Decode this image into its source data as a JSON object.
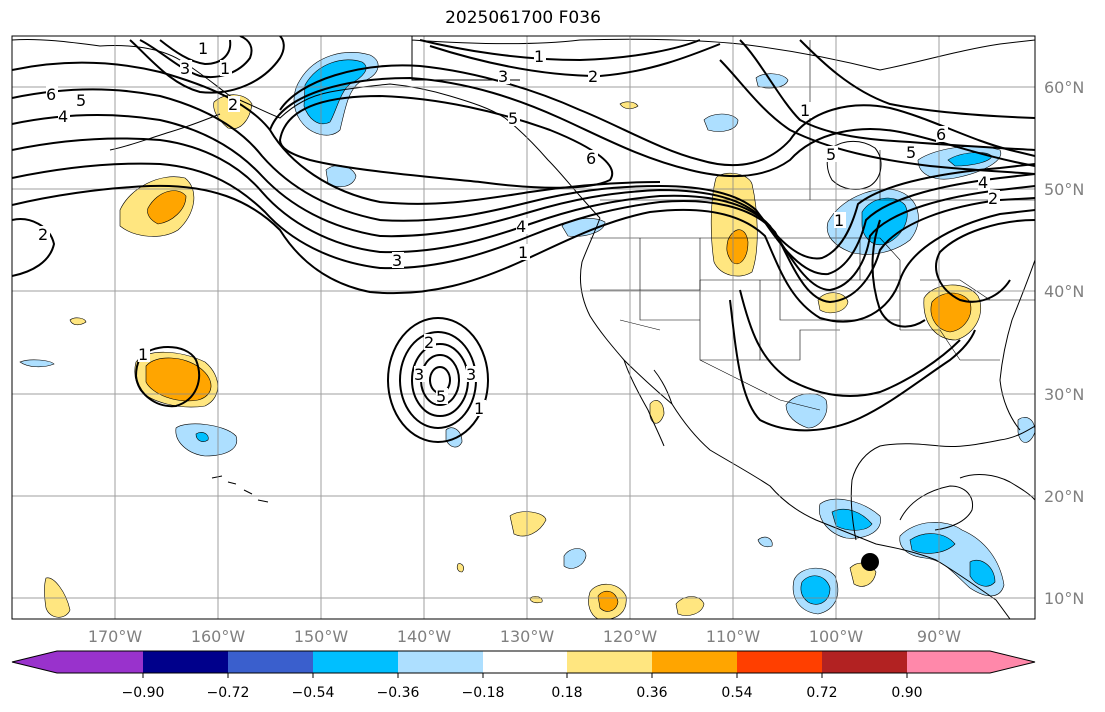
{
  "title": "2025061700 F036",
  "map": {
    "lat_labels": [
      "60°N",
      "50°N",
      "40°N",
      "30°N",
      "20°N",
      "10°N"
    ],
    "lon_labels": [
      "170°W",
      "160°W",
      "150°W",
      "140°W",
      "130°W",
      "120°W",
      "110°W",
      "100°W",
      "90°W"
    ],
    "contour_labels": [
      "1",
      "3",
      "1",
      "6",
      "5",
      "4",
      "2",
      "1",
      "3",
      "2",
      "3",
      "5",
      "6",
      "4",
      "1",
      "3",
      "2",
      "1",
      "3",
      "5",
      "1",
      "6",
      "5",
      "4",
      "2",
      "5",
      "1",
      "1",
      "2"
    ],
    "marker": "black-dot"
  },
  "colorbar": {
    "ticks": [
      "−0.90",
      "−0.72",
      "−0.54",
      "−0.36",
      "−0.18",
      "0.18",
      "0.36",
      "0.54",
      "0.72",
      "0.90"
    ],
    "colors": [
      "#9932cc",
      "#00008b",
      "#3a5fcd",
      "#00bfff",
      "#addfff",
      "#ffffff",
      "#ffe680",
      "#ffa500",
      "#ff3f00",
      "#b22222",
      "#ff88aa"
    ]
  },
  "legend_colors": {
    "light_blue": "#addfff",
    "blue": "#00bfff",
    "light_yellow": "#ffe680",
    "orange": "#ffa500"
  }
}
